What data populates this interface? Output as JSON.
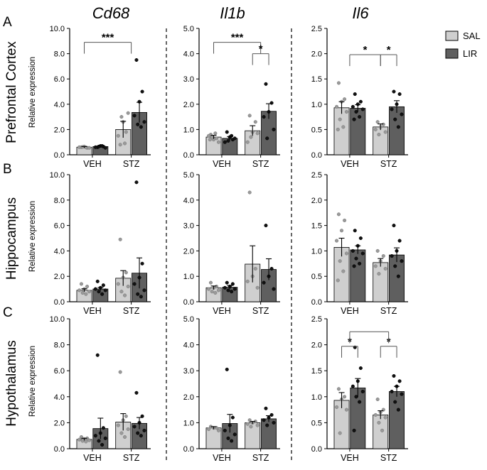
{
  "colors": {
    "sal_bar": "#cfcfcf",
    "lir_bar": "#5f5f5f",
    "sal_dot": "#9a9a9a",
    "lir_dot": "#111111",
    "axis": "#000000",
    "bracket": "#555555"
  },
  "chart_data": {
    "type": "bar",
    "genes": [
      "Cd68",
      "Il1b",
      "Il6"
    ],
    "regions": [
      "Prefrontal Cortex",
      "Hippocampus",
      "Hypothalamus"
    ],
    "panel_letters": [
      "A",
      "B",
      "C"
    ],
    "categories": [
      "VEH",
      "STZ"
    ],
    "ylabel": "Relative expression",
    "legend": [
      {
        "name": "SAL",
        "color": "#cfcfcf"
      },
      {
        "name": "LIR",
        "color": "#5f5f5f"
      }
    ],
    "legend_position": "top-right",
    "ylims": {
      "Cd68": [
        0,
        10
      ],
      "Il1b": [
        0,
        5
      ],
      "Il6": [
        0,
        2.5
      ]
    },
    "yticks": {
      "Cd68": [
        "0.0",
        "2.0",
        "4.0",
        "6.0",
        "8.0",
        "10.0"
      ],
      "Il1b": [
        "0.0",
        "1.0",
        "2.0",
        "3.0",
        "4.0",
        "5.0"
      ],
      "Il6": [
        "0.0",
        "0.5",
        "1.0",
        "1.5",
        "2.0",
        "2.5"
      ]
    },
    "panels": [
      {
        "row": 0,
        "col": 0,
        "series": [
          {
            "name": "SAL",
            "values": [
              0.6,
              2.0
            ],
            "errors": [
              0.05,
              0.65
            ]
          },
          {
            "name": "LIR",
            "values": [
              0.65,
              3.35
            ],
            "errors": [
              0.05,
              0.8
            ]
          }
        ],
        "points": {
          "SAL": [
            [
              0.6,
              0.55,
              0.65,
              0.6,
              0.55,
              0.62,
              0.58
            ],
            [
              0.8,
              1.8,
              2.6,
              1.5,
              3.3,
              3.0,
              0.9
            ]
          ],
          "LIR": [
            [
              0.6,
              0.65,
              0.7,
              0.6,
              0.55,
              0.65,
              0.7
            ],
            [
              7.5,
              5.0,
              4.2,
              3.1,
              2.6,
              2.4,
              2.2
            ]
          ]
        },
        "annotations": [
          {
            "text": "***",
            "from": [
              0,
              "SAL"
            ],
            "to": [
              1,
              "center"
            ],
            "y": 8.9
          }
        ]
      },
      {
        "row": 0,
        "col": 1,
        "series": [
          {
            "name": "SAL",
            "values": [
              0.7,
              0.95
            ],
            "errors": [
              0.07,
              0.2
            ]
          },
          {
            "name": "LIR",
            "values": [
              0.65,
              1.72
            ],
            "errors": [
              0.07,
              0.3
            ]
          }
        ],
        "points": {
          "SAL": [
            [
              0.8,
              0.65,
              0.6,
              0.75,
              0.5,
              0.7,
              0.85,
              0.6
            ],
            [
              1.55,
              1.3,
              0.9,
              0.5,
              0.85,
              0.7
            ]
          ],
          "LIR": [
            [
              0.9,
              0.6,
              0.7,
              0.5,
              0.65,
              0.55,
              0.75
            ],
            [
              2.8,
              2.05,
              1.7,
              1.5,
              1.0,
              0.65
            ]
          ]
        },
        "annotations": [
          {
            "text": "***",
            "from": [
              0,
              "SAL"
            ],
            "to": [
              1,
              "center"
            ],
            "y": 4.45
          },
          {
            "text": "*",
            "from": [
              1,
              "SAL"
            ],
            "to": [
              1,
              "LIR"
            ],
            "y": 4.0
          }
        ]
      },
      {
        "row": 0,
        "col": 2,
        "series": [
          {
            "name": "SAL",
            "values": [
              0.93,
              0.55
            ],
            "errors": [
              0.12,
              0.06
            ]
          },
          {
            "name": "LIR",
            "values": [
              0.92,
              0.95
            ],
            "errors": [
              0.07,
              0.12
            ]
          }
        ],
        "points": {
          "SAL": [
            [
              1.42,
              1.1,
              1.05,
              0.95,
              0.85,
              0.7,
              0.55,
              0.5
            ],
            [
              0.65,
              0.6,
              0.55,
              0.5,
              0.45,
              0.4
            ]
          ],
          "LIR": [
            [
              1.2,
              1.05,
              1.0,
              0.95,
              0.9,
              0.85,
              0.75,
              0.7
            ],
            [
              1.25,
              1.2,
              1.0,
              0.9,
              0.8,
              0.7,
              0.55
            ]
          ]
        },
        "annotations": [
          {
            "text": "*",
            "from": [
              0,
              "center"
            ],
            "to": [
              1,
              "SAL"
            ],
            "y": 1.98
          },
          {
            "text": "*",
            "from": [
              1,
              "SAL"
            ],
            "to": [
              1,
              "LIR"
            ],
            "y": 1.98
          }
        ]
      },
      {
        "row": 1,
        "col": 0,
        "series": [
          {
            "name": "SAL",
            "values": [
              0.9,
              1.85
            ],
            "errors": [
              0.12,
              0.6
            ]
          },
          {
            "name": "LIR",
            "values": [
              1.0,
              2.25
            ],
            "errors": [
              0.12,
              1.2
            ]
          }
        ],
        "points": {
          "SAL": [
            [
              1.4,
              1.2,
              1.0,
              0.9,
              0.8,
              0.7,
              0.6
            ],
            [
              4.9,
              2.3,
              1.9,
              1.4,
              1.2,
              0.8,
              0.5
            ]
          ],
          "LIR": [
            [
              1.6,
              1.3,
              1.1,
              1.0,
              0.9,
              0.8,
              0.6
            ],
            [
              9.4,
              3.0,
              1.9,
              1.4,
              0.9,
              0.6,
              0.4
            ]
          ]
        },
        "annotations": []
      },
      {
        "row": 1,
        "col": 1,
        "series": [
          {
            "name": "SAL",
            "values": [
              0.55,
              1.48
            ],
            "errors": [
              0.07,
              0.72
            ]
          },
          {
            "name": "LIR",
            "values": [
              0.57,
              1.27
            ],
            "errors": [
              0.07,
              0.42
            ]
          }
        ],
        "points": {
          "SAL": [
            [
              0.75,
              0.6,
              0.55,
              0.5,
              0.45,
              0.4,
              0.35
            ],
            [
              4.3,
              1.3,
              1.0,
              0.8,
              0.55
            ]
          ],
          "LIR": [
            [
              0.75,
              0.7,
              0.6,
              0.55,
              0.5,
              0.45,
              0.4
            ],
            [
              3.0,
              1.3,
              1.0,
              0.75,
              0.5
            ]
          ]
        },
        "annotations": []
      },
      {
        "row": 1,
        "col": 2,
        "series": [
          {
            "name": "SAL",
            "values": [
              1.07,
              0.77
            ],
            "errors": [
              0.18,
              0.08
            ]
          },
          {
            "name": "LIR",
            "values": [
              1.02,
              0.92
            ],
            "errors": [
              0.08,
              0.14
            ]
          }
        ],
        "points": {
          "SAL": [
            [
              1.72,
              1.6,
              1.4,
              1.2,
              0.95,
              0.8,
              0.6,
              0.42
            ],
            [
              1.0,
              0.9,
              0.8,
              0.7,
              0.65,
              0.55
            ]
          ],
          "LIR": [
            [
              1.4,
              1.25,
              1.1,
              1.0,
              0.95,
              0.85,
              0.75,
              0.7
            ],
            [
              1.5,
              1.2,
              1.0,
              0.9,
              0.8,
              0.7,
              0.5
            ]
          ]
        },
        "annotations": []
      },
      {
        "row": 2,
        "col": 0,
        "series": [
          {
            "name": "SAL",
            "values": [
              0.72,
              2.05
            ],
            "errors": [
              0.08,
              0.65
            ]
          },
          {
            "name": "LIR",
            "values": [
              1.55,
              1.95
            ],
            "errors": [
              0.8,
              0.45
            ]
          }
        ],
        "points": {
          "SAL": [
            [
              0.9,
              0.8,
              0.75,
              0.7,
              0.65,
              0.6,
              0.55
            ],
            [
              5.9,
              2.5,
              2.2,
              1.8,
              1.5,
              1.2,
              0.9
            ]
          ],
          "LIR": [
            [
              7.2,
              1.6,
              1.2,
              1.0,
              0.8,
              0.6,
              0.3
            ],
            [
              4.3,
              2.5,
              2.0,
              1.7,
              1.4,
              1.2,
              1.0
            ]
          ]
        },
        "annotations": []
      },
      {
        "row": 2,
        "col": 1,
        "series": [
          {
            "name": "SAL",
            "values": [
              0.8,
              1.0
            ],
            "errors": [
              0.05,
              0.05
            ]
          },
          {
            "name": "LIR",
            "values": [
              0.97,
              1.15
            ],
            "errors": [
              0.35,
              0.12
            ]
          }
        ],
        "points": {
          "SAL": [
            [
              0.85,
              0.8,
              0.8,
              0.75,
              0.7
            ],
            [
              1.1,
              1.05,
              1.0,
              0.95,
              0.9,
              0.85
            ]
          ],
          "LIR": [
            [
              3.05,
              1.2,
              0.9,
              0.7,
              0.55,
              0.4,
              0.3
            ],
            [
              1.55,
              1.3,
              1.2,
              1.1,
              1.0,
              0.9
            ]
          ]
        },
        "annotations": []
      },
      {
        "row": 2,
        "col": 2,
        "series": [
          {
            "name": "SAL",
            "values": [
              0.93,
              0.65
            ],
            "errors": [
              0.15,
              0.08
            ]
          },
          {
            "name": "LIR",
            "values": [
              1.17,
              1.1
            ],
            "errors": [
              0.18,
              0.1
            ]
          }
        ],
        "points": {
          "SAL": [
            [
              1.15,
              1.0,
              0.95,
              0.8,
              0.75,
              0.3
            ],
            [
              0.95,
              0.75,
              0.7,
              0.65,
              0.6,
              0.5,
              0.35
            ]
          ],
          "LIR": [
            [
              1.95,
              1.55,
              1.3,
              1.2,
              1.1,
              1.0,
              0.9,
              0.35
            ],
            [
              1.4,
              1.3,
              1.2,
              1.1,
              1.05,
              0.9,
              0.75
            ]
          ]
        },
        "annotations": [
          {
            "text": "*",
            "from": [
              0,
              "SAL"
            ],
            "to": [
              0,
              "LIR"
            ],
            "y": 1.97
          },
          {
            "text": "*",
            "from": [
              1,
              "SAL"
            ],
            "to": [
              1,
              "LIR"
            ],
            "y": 1.97
          },
          {
            "text": "",
            "from": [
              0,
              "center"
            ],
            "to": [
              1,
              "center"
            ],
            "y": 2.25
          }
        ]
      }
    ]
  }
}
